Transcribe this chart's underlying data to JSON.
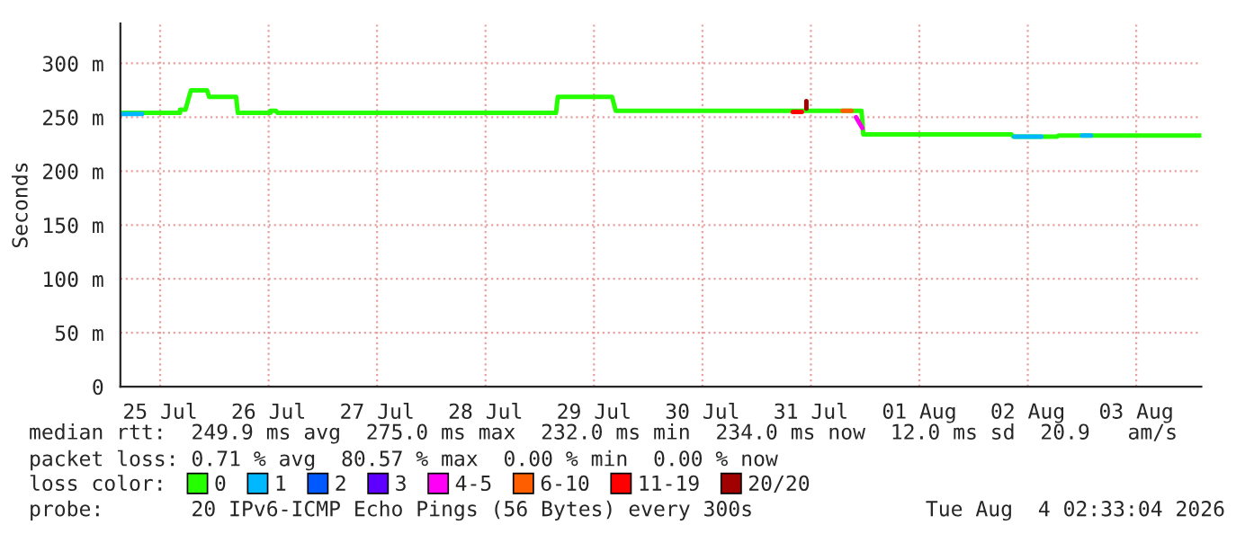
{
  "chart_data": {
    "type": "line",
    "ylabel": "Seconds",
    "xlim": [
      "2026-07-25T03:12",
      "2026-08-04T02:24"
    ],
    "xticks": [
      {
        "value": "2026-07-25T12:00",
        "label": "25 Jul"
      },
      {
        "value": "2026-07-26T12:00",
        "label": "26 Jul"
      },
      {
        "value": "2026-07-27T12:00",
        "label": "27 Jul"
      },
      {
        "value": "2026-07-28T12:00",
        "label": "28 Jul"
      },
      {
        "value": "2026-07-29T12:00",
        "label": "29 Jul"
      },
      {
        "value": "2026-07-30T12:00",
        "label": "30 Jul"
      },
      {
        "value": "2026-07-31T12:00",
        "label": "31 Jul"
      },
      {
        "value": "2026-08-01T12:00",
        "label": "01 Aug"
      },
      {
        "value": "2026-08-02T12:00",
        "label": "02 Aug"
      },
      {
        "value": "2026-08-03T12:00",
        "label": "03 Aug"
      }
    ],
    "ylim": [
      0,
      337
    ],
    "yticks": [
      0,
      {
        "value": 50,
        "label": "50 m"
      },
      {
        "value": 100,
        "label": "100 m"
      },
      {
        "value": 150,
        "label": "150 m"
      },
      {
        "value": 200,
        "label": "200 m"
      },
      {
        "value": 250,
        "label": "250 m"
      },
      {
        "value": 300,
        "label": "300 m"
      }
    ],
    "grid": true,
    "legend": "bottom",
    "legend_title": "loss color:",
    "series": [
      {
        "name": "0",
        "color": "#26ff00",
        "x": [
          "2026-07-25T03:12",
          "2026-07-25T16:24",
          "2026-07-25T16:24",
          "2026-07-25T17:36",
          "2026-07-25T18:48",
          "2026-07-25T22:24",
          "2026-07-25T22:48",
          "2026-07-26T04:48",
          "2026-07-26T05:12",
          "2026-07-26T12:24",
          "2026-07-26T12:24",
          "2026-07-26T13:36",
          "2026-07-26T14:00",
          "2026-07-29T03:36",
          "2026-07-29T04:00",
          "2026-07-29T16:00",
          "2026-07-29T16:48",
          "2026-07-31T23:12",
          "2026-07-31T23:36",
          "2026-08-02T08:24",
          "2026-08-02T08:48",
          "2026-08-02T18:24",
          "2026-08-02T18:48",
          "2026-08-04T02:24"
        ],
        "values": [
          254,
          254,
          257,
          257,
          275,
          275,
          269,
          269,
          254,
          254,
          256,
          256,
          254,
          254,
          269,
          269,
          256,
          256,
          234,
          234,
          232,
          232,
          233,
          233
        ]
      },
      {
        "name": "1",
        "color": "#00b8ff",
        "x": [
          "2026-07-25T03:12",
          "2026-07-25T08:00",
          "2026-07-25T08:30",
          "2026-08-02T09:00",
          "2026-08-02T15:00",
          "2026-08-02T15:30",
          "2026-08-03T00:00",
          "2026-08-03T02:00"
        ],
        "values": [
          253,
          253,
          null,
          232,
          232,
          null,
          233,
          233
        ]
      },
      {
        "name": "2",
        "color": "#0059ff"
      },
      {
        "name": "3",
        "color": "#5e00ff"
      },
      {
        "name": "4-5",
        "color": "#ff00f6",
        "x": [
          "2026-07-31T22:00",
          "2026-07-31T23:24"
        ],
        "values": [
          250,
          240
        ]
      },
      {
        "name": "6-10",
        "color": "#ff5e00",
        "x": [
          "2026-07-31T19:00",
          "2026-07-31T21:00"
        ],
        "values": [
          256,
          256
        ]
      },
      {
        "name": "11-19",
        "color": "#ff0000",
        "x": [
          "2026-07-31T08:00",
          "2026-07-31T10:00"
        ],
        "values": [
          255,
          255
        ]
      },
      {
        "name": "20/20",
        "color": "#a10000",
        "x": [
          "2026-07-31T11:00",
          "2026-07-31T11:00"
        ],
        "values": [
          258,
          265
        ]
      }
    ],
    "annotations": [
      "median rtt:  249.9 ms avg  275.0 ms max  232.0 ms min  234.0 ms now  12.0 ms sd  20.9   am/s",
      "packet loss: 0.71 % avg  80.57 % max  0.00 % min  0.00 % now",
      "probe:       20 IPv6-ICMP Echo Pings (56 Bytes) every 300s",
      "Tue Aug  4 02:33:04 2026"
    ]
  }
}
